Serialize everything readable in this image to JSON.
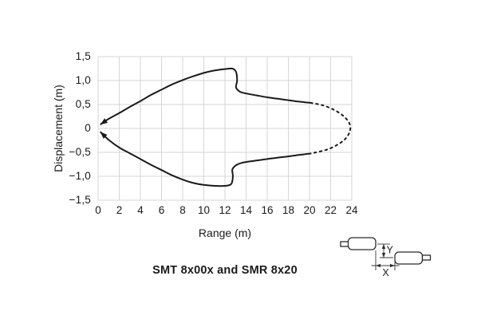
{
  "chart_data": {
    "type": "line",
    "title": "SMT 8x00x and SMR 8x20",
    "xlabel": "Range (m)",
    "ylabel": "Displacement (m)",
    "xlim": [
      0,
      24
    ],
    "ylim": [
      -1.5,
      1.5
    ],
    "grid": true,
    "legend_position": "none",
    "curve_color": "#1a1a1a",
    "grid_color": "#d6d6d6",
    "x_tick_labels": [
      "0",
      "2",
      "4",
      "6",
      "8",
      "10",
      "12",
      "14",
      "16",
      "18",
      "20",
      "22",
      "24"
    ],
    "y_tick_labels": [
      "1,5",
      "1,0",
      "0,5",
      "0",
      "−0,5",
      "−1,0",
      "−1,5"
    ],
    "series": [
      {
        "name": "beam-upper-boundary",
        "style": "solid",
        "arrow_start": true,
        "points": [
          [
            0.2,
            0.08
          ],
          [
            1,
            0.2
          ],
          [
            2,
            0.32
          ],
          [
            3,
            0.45
          ],
          [
            4,
            0.57
          ],
          [
            5,
            0.7
          ],
          [
            6,
            0.81
          ],
          [
            7,
            0.92
          ],
          [
            8,
            1.01
          ],
          [
            9,
            1.09
          ],
          [
            10,
            1.16
          ],
          [
            11,
            1.21
          ],
          [
            12,
            1.24
          ],
          [
            12.7,
            1.25
          ],
          [
            13.05,
            1.18
          ],
          [
            13.15,
            1.0
          ],
          [
            13.05,
            0.86
          ],
          [
            13.4,
            0.77
          ],
          [
            14,
            0.73
          ],
          [
            15,
            0.69
          ],
          [
            16,
            0.65
          ],
          [
            17,
            0.62
          ],
          [
            18,
            0.59
          ],
          [
            19,
            0.56
          ],
          [
            20.1,
            0.535
          ]
        ]
      },
      {
        "name": "beam-lower-boundary",
        "style": "solid",
        "arrow_start": true,
        "points": [
          [
            0.2,
            -0.07
          ],
          [
            1,
            -0.24
          ],
          [
            2,
            -0.4
          ],
          [
            3,
            -0.52
          ],
          [
            4,
            -0.64
          ],
          [
            5,
            -0.76
          ],
          [
            6,
            -0.87
          ],
          [
            7,
            -0.98
          ],
          [
            8,
            -1.07
          ],
          [
            9,
            -1.14
          ],
          [
            10,
            -1.18
          ],
          [
            11,
            -1.2
          ],
          [
            12,
            -1.2
          ],
          [
            12.6,
            -1.16
          ],
          [
            12.75,
            -1.0
          ],
          [
            12.7,
            -0.86
          ],
          [
            13.05,
            -0.77
          ],
          [
            13.6,
            -0.72
          ],
          [
            14.5,
            -0.685
          ],
          [
            16,
            -0.64
          ],
          [
            17,
            -0.61
          ],
          [
            18,
            -0.585
          ],
          [
            19,
            -0.555
          ],
          [
            20.1,
            -0.525
          ]
        ]
      },
      {
        "name": "beam-max-range-dashed",
        "style": "dashed",
        "arrow_start": false,
        "points": [
          [
            20.1,
            0.535
          ],
          [
            21.3,
            0.48
          ],
          [
            22.3,
            0.39
          ],
          [
            23.15,
            0.27
          ],
          [
            23.75,
            0.12
          ],
          [
            23.85,
            -0.03
          ],
          [
            23.5,
            -0.19
          ],
          [
            22.8,
            -0.32
          ],
          [
            21.7,
            -0.44
          ],
          [
            20.1,
            -0.525
          ]
        ]
      }
    ]
  },
  "sensor_diagram": {
    "x_label": "X",
    "y_label": "Y"
  }
}
